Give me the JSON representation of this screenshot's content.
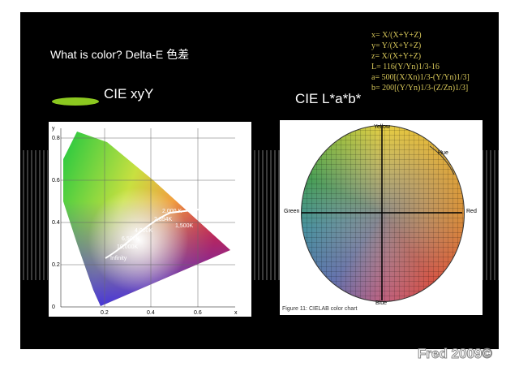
{
  "slide": {
    "title": "What is color?   Delta-E 色差",
    "formulas": [
      "x= X/(X+Y+Z)",
      "y= Y/(X+Y+Z)",
      "z= X/(X+Y+Z)",
      "L= 116(Y/Yn)1/3-16",
      "a= 500[(X/Xn)1/3-(Y/Yn)1/3]",
      "b= 200[(Y/Yn)1/3-(Z/Zn)1/3]"
    ],
    "left_heading": "CIE xyY",
    "right_heading": "CIE L*a*b*",
    "footer": "Fred 2009©"
  },
  "xyy_diagram": {
    "y_axis_label": "y",
    "x_axis_label": "x",
    "y_ticks": [
      "0.8",
      "0.6",
      "0.4",
      "0.2",
      "0"
    ],
    "x_ticks": [
      "0.2",
      "0.4",
      "0.6"
    ],
    "temperatures": [
      "2,000 K",
      "2,854K",
      "1,500K",
      "4,000K",
      "6,500K",
      "10,000K",
      "Infinity"
    ]
  },
  "lab_chart": {
    "caption": "Figure 11: CIELAB color chart",
    "hue_label": "Hue",
    "axis_labels": [
      "Yellow",
      "Green",
      "Red",
      "Blue"
    ]
  }
}
